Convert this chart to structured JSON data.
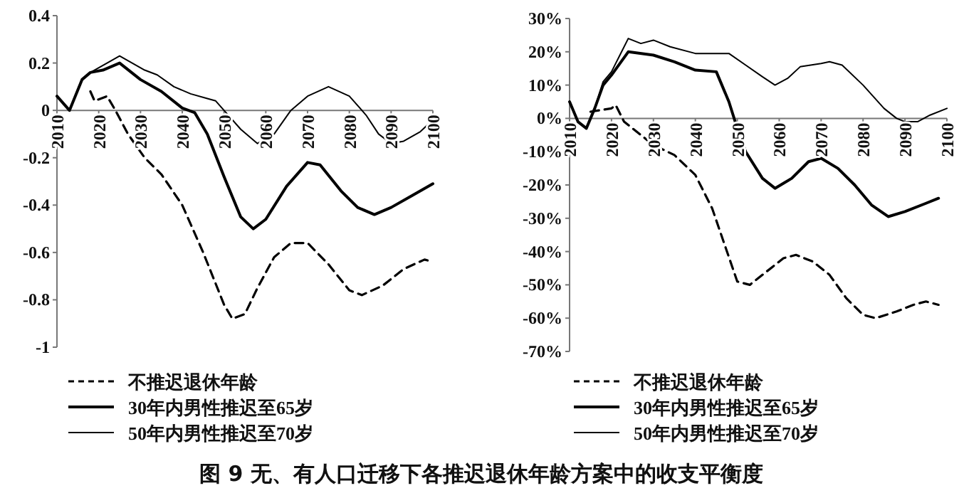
{
  "chart_data": [
    {
      "type": "line",
      "xlim": [
        2010,
        2100
      ],
      "xticks": [
        2010,
        2020,
        2030,
        2040,
        2050,
        2060,
        2070,
        2080,
        2090,
        2100
      ],
      "ylim": [
        -1,
        0.4
      ],
      "yticks": [
        0.4,
        0.2,
        0,
        -0.2,
        -0.4,
        -0.6,
        -0.8,
        -1
      ],
      "legend": "bottom",
      "grid": false,
      "annotations": [
        "图 9  无、有人口迁移下各推迟退休年龄方案中的收支平衡度"
      ],
      "series": [
        {
          "name": "不推迟退休年龄",
          "color": "#000000",
          "line_style": "dashed",
          "x": [
            2018,
            2019,
            2022,
            2024,
            2027,
            2031,
            2035,
            2040,
            2045,
            2050,
            2052,
            2055,
            2058,
            2062,
            2066,
            2070,
            2075,
            2080,
            2083,
            2088,
            2093,
            2098,
            2100
          ],
          "values": [
            0.08,
            0.04,
            0.06,
            0,
            -0.1,
            -0.2,
            -0.27,
            -0.4,
            -0.6,
            -0.82,
            -0.88,
            -0.86,
            -0.75,
            -0.62,
            -0.56,
            -0.56,
            -0.65,
            -0.76,
            -0.78,
            -0.74,
            -0.67,
            -0.63,
            -0.64
          ]
        },
        {
          "name": "30年内男性推迟至65岁",
          "color": "#000000",
          "line_style": "solid",
          "x": [
            2010,
            2013,
            2016,
            2018,
            2021,
            2025,
            2030,
            2035,
            2040,
            2043,
            2046,
            2050,
            2054,
            2057,
            2060,
            2065,
            2070,
            2073,
            2078,
            2082,
            2086,
            2090,
            2095,
            2100
          ],
          "values": [
            0.06,
            0,
            0.13,
            0.16,
            0.17,
            0.2,
            0.13,
            0.08,
            0.01,
            -0.01,
            -0.1,
            -0.28,
            -0.45,
            -0.5,
            -0.46,
            -0.32,
            -0.22,
            -0.23,
            -0.34,
            -0.41,
            -0.44,
            -0.41,
            -0.36,
            -0.31
          ]
        },
        {
          "name": "50年内男性推迟至70岁",
          "color": "#000000",
          "line_style": "solid",
          "x": [
            2016,
            2018,
            2022,
            2025,
            2028,
            2031,
            2034,
            2038,
            2042,
            2046,
            2048,
            2050,
            2054,
            2058,
            2062,
            2066,
            2070,
            2075,
            2080,
            2084,
            2087,
            2090,
            2093,
            2097,
            2100
          ],
          "values": [
            0.13,
            0.16,
            0.2,
            0.23,
            0.2,
            0.17,
            0.15,
            0.1,
            0.07,
            0.05,
            0.04,
            0,
            -0.08,
            -0.14,
            -0.1,
            0,
            0.06,
            0.1,
            0.06,
            -0.02,
            -0.1,
            -0.14,
            -0.13,
            -0.09,
            -0.04
          ]
        }
      ]
    },
    {
      "type": "line",
      "xlim": [
        2010,
        2100
      ],
      "xticks": [
        2010,
        2020,
        2030,
        2040,
        2050,
        2060,
        2070,
        2080,
        2090,
        2100
      ],
      "ylim": [
        -70,
        30
      ],
      "yticks": [
        {
          "value": 30,
          "label": "30%"
        },
        {
          "value": 20,
          "label": "20%"
        },
        {
          "value": 10,
          "label": "10%"
        },
        {
          "value": 0,
          "label": "0%"
        },
        {
          "value": -10,
          "label": "-10%"
        },
        {
          "value": -20,
          "label": "-20%"
        },
        {
          "value": -30,
          "label": "-30%"
        },
        {
          "value": -40,
          "label": "-40%"
        },
        {
          "value": -50,
          "label": "-50%"
        },
        {
          "value": -60,
          "label": "-60%"
        },
        {
          "value": -70,
          "label": "-70%"
        }
      ],
      "legend": "bottom",
      "grid": false,
      "series": [
        {
          "name": "不推迟退休年龄",
          "color": "#000000",
          "line_style": "dashed",
          "x": [
            2015,
            2020,
            2021,
            2023,
            2027,
            2030,
            2035,
            2040,
            2044,
            2047,
            2050,
            2053,
            2057,
            2061,
            2064,
            2068,
            2072,
            2076,
            2080,
            2083,
            2088,
            2092,
            2095,
            2098
          ],
          "values": [
            2,
            3,
            4,
            -1,
            -5,
            -8,
            -11,
            -17,
            -27,
            -38,
            -49,
            -50,
            -46,
            -42,
            -41,
            -43,
            -47,
            -54,
            -59,
            -60,
            -58,
            -56,
            -55,
            -56
          ]
        },
        {
          "name": "30年内男性推迟至65岁",
          "color": "#000000",
          "line_style": "solid",
          "x": [
            2010,
            2012,
            2014,
            2016,
            2018,
            2020,
            2024,
            2030,
            2035,
            2040,
            2045,
            2048,
            2050,
            2052,
            2056,
            2059,
            2063,
            2067,
            2070,
            2074,
            2078,
            2082,
            2086,
            2090,
            2095,
            2098
          ],
          "values": [
            5,
            -1,
            -3,
            3,
            10,
            13,
            20,
            19,
            17,
            14.5,
            14,
            5,
            -3,
            -10,
            -18,
            -21,
            -18,
            -13,
            -12,
            -15,
            -20,
            -26,
            -29.5,
            -28,
            -25.5,
            -24
          ]
        },
        {
          "name": "50年内男性推迟至70岁",
          "color": "#000000",
          "line_style": "solid",
          "x": [
            2016,
            2018,
            2020,
            2022,
            2024,
            2027,
            2030,
            2034,
            2040,
            2045,
            2048,
            2052,
            2056,
            2059,
            2062,
            2065,
            2070,
            2072,
            2075,
            2080,
            2085,
            2088,
            2090,
            2093,
            2096,
            2100
          ],
          "values": [
            3,
            11,
            14,
            19,
            24,
            22.5,
            23.5,
            21.5,
            19.5,
            19.5,
            19.5,
            16,
            12.5,
            10,
            12,
            15.5,
            16.5,
            17,
            16,
            10,
            3,
            0,
            -1,
            -1,
            1,
            3
          ]
        }
      ]
    }
  ]
}
